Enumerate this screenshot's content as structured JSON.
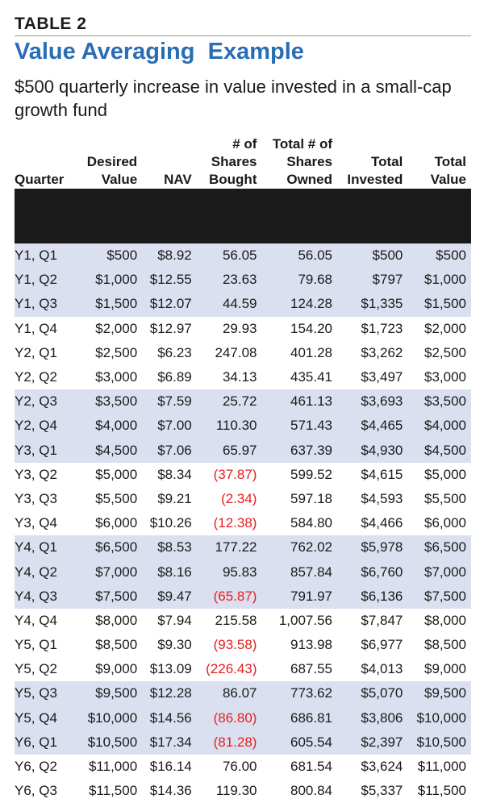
{
  "table_label": "TABLE 2",
  "title": "Value Averaging  Example",
  "subtitle": "$500 quarterly increase in value invested in a small-cap growth fund",
  "headers": [
    [
      "Quarter"
    ],
    [
      "Desired",
      "Value"
    ],
    [
      "NAV"
    ],
    [
      "# of",
      "Shares",
      "Bought"
    ],
    [
      "Total # of",
      "Shares",
      "Owned"
    ],
    [
      "Total",
      "Invested"
    ],
    [
      "Total",
      "Value"
    ]
  ],
  "rows": [
    {
      "quarter": "Y1, Q1",
      "desired": "$500",
      "nav": "$8.92",
      "bought": "56.05",
      "owned": "56.05",
      "invested": "$500",
      "value": "$500",
      "shade": true,
      "neg": false
    },
    {
      "quarter": "Y1, Q2",
      "desired": "$1,000",
      "nav": "$12.55",
      "bought": "23.63",
      "owned": "79.68",
      "invested": "$797",
      "value": "$1,000",
      "shade": true,
      "neg": false
    },
    {
      "quarter": "Y1, Q3",
      "desired": "$1,500",
      "nav": "$12.07",
      "bought": "44.59",
      "owned": "124.28",
      "invested": "$1,335",
      "value": "$1,500",
      "shade": true,
      "neg": false
    },
    {
      "quarter": "Y1, Q4",
      "desired": "$2,000",
      "nav": "$12.97",
      "bought": "29.93",
      "owned": "154.20",
      "invested": "$1,723",
      "value": "$2,000",
      "shade": false,
      "neg": false
    },
    {
      "quarter": "Y2, Q1",
      "desired": "$2,500",
      "nav": "$6.23",
      "bought": "247.08",
      "owned": "401.28",
      "invested": "$3,262",
      "value": "$2,500",
      "shade": false,
      "neg": false
    },
    {
      "quarter": "Y2, Q2",
      "desired": "$3,000",
      "nav": "$6.89",
      "bought": "34.13",
      "owned": "435.41",
      "invested": "$3,497",
      "value": "$3,000",
      "shade": false,
      "neg": false
    },
    {
      "quarter": "Y2, Q3",
      "desired": "$3,500",
      "nav": "$7.59",
      "bought": "25.72",
      "owned": "461.13",
      "invested": "$3,693",
      "value": "$3,500",
      "shade": true,
      "neg": false
    },
    {
      "quarter": "Y2, Q4",
      "desired": "$4,000",
      "nav": "$7.00",
      "bought": "110.30",
      "owned": "571.43",
      "invested": "$4,465",
      "value": "$4,000",
      "shade": true,
      "neg": false
    },
    {
      "quarter": "Y3, Q1",
      "desired": "$4,500",
      "nav": "$7.06",
      "bought": "65.97",
      "owned": "637.39",
      "invested": "$4,930",
      "value": "$4,500",
      "shade": true,
      "neg": false
    },
    {
      "quarter": "Y3, Q2",
      "desired": "$5,000",
      "nav": "$8.34",
      "bought": "(37.87)",
      "owned": "599.52",
      "invested": "$4,615",
      "value": "$5,000",
      "shade": false,
      "neg": true
    },
    {
      "quarter": "Y3, Q3",
      "desired": "$5,500",
      "nav": "$9.21",
      "bought": "(2.34)",
      "owned": "597.18",
      "invested": "$4,593",
      "value": "$5,500",
      "shade": false,
      "neg": true
    },
    {
      "quarter": "Y3, Q4",
      "desired": "$6,000",
      "nav": "$10.26",
      "bought": "(12.38)",
      "owned": "584.80",
      "invested": "$4,466",
      "value": "$6,000",
      "shade": false,
      "neg": true
    },
    {
      "quarter": "Y4, Q1",
      "desired": "$6,500",
      "nav": "$8.53",
      "bought": "177.22",
      "owned": "762.02",
      "invested": "$5,978",
      "value": "$6,500",
      "shade": true,
      "neg": false
    },
    {
      "quarter": "Y4, Q2",
      "desired": "$7,000",
      "nav": "$8.16",
      "bought": "95.83",
      "owned": "857.84",
      "invested": "$6,760",
      "value": "$7,000",
      "shade": true,
      "neg": false
    },
    {
      "quarter": "Y4, Q3",
      "desired": "$7,500",
      "nav": "$9.47",
      "bought": "(65.87)",
      "owned": "791.97",
      "invested": "$6,136",
      "value": "$7,500",
      "shade": true,
      "neg": true
    },
    {
      "quarter": "Y4, Q4",
      "desired": "$8,000",
      "nav": "$7.94",
      "bought": "215.58",
      "owned": "1,007.56",
      "invested": "$7,847",
      "value": "$8,000",
      "shade": false,
      "neg": false
    },
    {
      "quarter": "Y5, Q1",
      "desired": "$8,500",
      "nav": "$9.30",
      "bought": "(93.58)",
      "owned": "913.98",
      "invested": "$6,977",
      "value": "$8,500",
      "shade": false,
      "neg": true
    },
    {
      "quarter": "Y5, Q2",
      "desired": "$9,000",
      "nav": "$13.09",
      "bought": "(226.43)",
      "owned": "687.55",
      "invested": "$4,013",
      "value": "$9,000",
      "shade": false,
      "neg": true
    },
    {
      "quarter": "Y5, Q3",
      "desired": "$9,500",
      "nav": "$12.28",
      "bought": "86.07",
      "owned": "773.62",
      "invested": "$5,070",
      "value": "$9,500",
      "shade": true,
      "neg": false
    },
    {
      "quarter": "Y5, Q4",
      "desired": "$10,000",
      "nav": "$14.56",
      "bought": "(86.80)",
      "owned": "686.81",
      "invested": "$3,806",
      "value": "$10,000",
      "shade": true,
      "neg": true
    },
    {
      "quarter": "Y6, Q1",
      "desired": "$10,500",
      "nav": "$17.34",
      "bought": "(81.28)",
      "owned": "605.54",
      "invested": "$2,397",
      "value": "$10,500",
      "shade": true,
      "neg": true
    },
    {
      "quarter": "Y6, Q2",
      "desired": "$11,000",
      "nav": "$16.14",
      "bought": "76.00",
      "owned": "681.54",
      "invested": "$3,624",
      "value": "$11,000",
      "shade": false,
      "neg": false
    },
    {
      "quarter": "Y6, Q3",
      "desired": "$11,500",
      "nav": "$14.36",
      "bought": "119.30",
      "owned": "800.84",
      "invested": "$5,337",
      "value": "$11,500",
      "shade": false,
      "neg": false
    }
  ],
  "colors": {
    "title": "#2a6db5",
    "row_shade": "#dbe0f0",
    "negative": "#e32020"
  }
}
